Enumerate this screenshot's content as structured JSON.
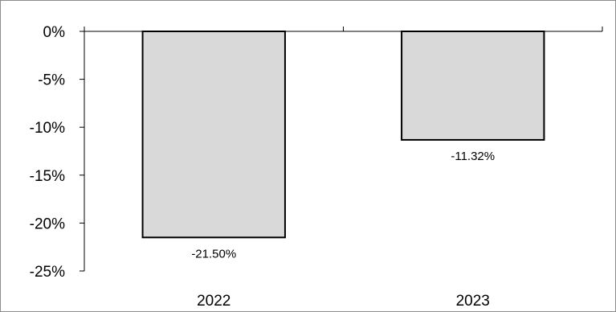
{
  "chart_data": {
    "type": "bar",
    "categories": [
      "2022",
      "2023"
    ],
    "values": [
      -21.5,
      -11.32
    ],
    "data_labels": [
      "-21.50%",
      "-11.32%"
    ],
    "y_ticks": [
      0,
      -5,
      -10,
      -15,
      -20,
      -25
    ],
    "y_tick_labels": [
      "0%",
      "-5%",
      "-10%",
      "-15%",
      "-20%",
      "-25%"
    ],
    "ylim": [
      -25,
      0
    ],
    "grid": false,
    "legend": "none",
    "bar_fill": "#d9d9d9",
    "bar_stroke": "#000000"
  }
}
